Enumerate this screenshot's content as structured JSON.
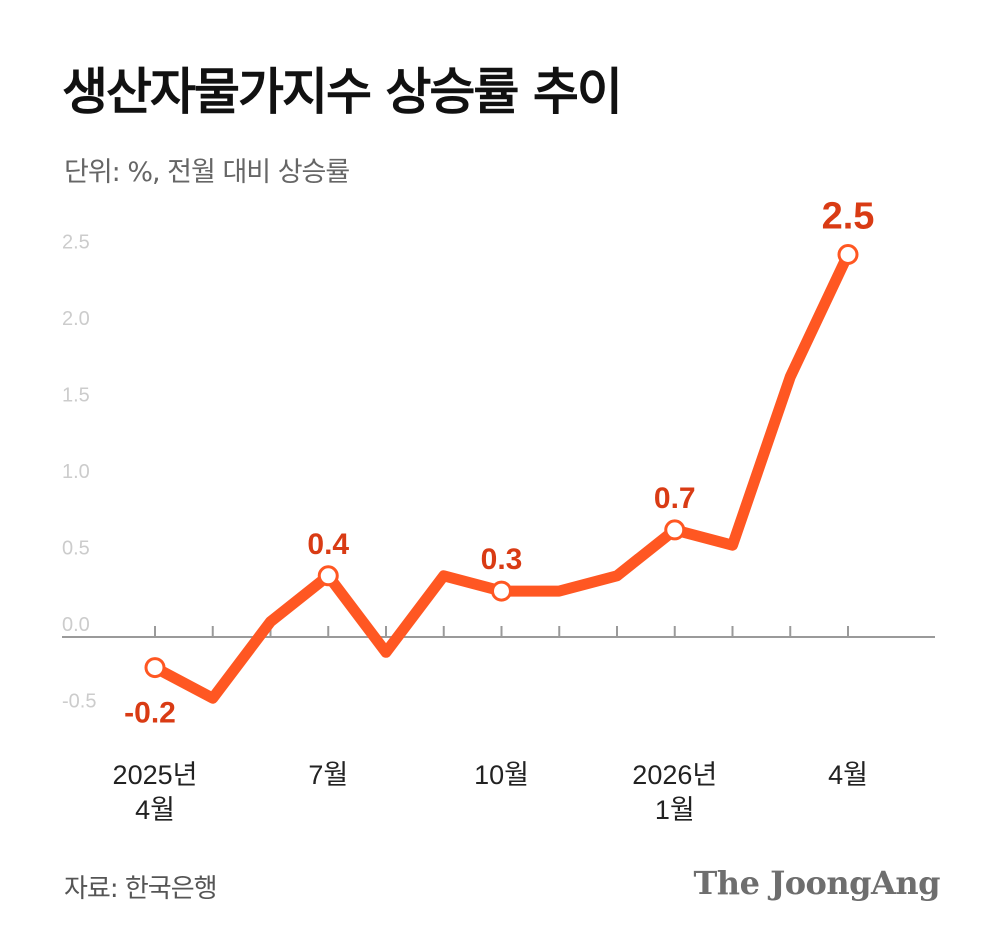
{
  "header": {
    "title": "생산자물가지수 상승률 추이",
    "subtitle": "단위: %, 전월 대비 상승률"
  },
  "footer": {
    "source": "자료: 한국은행",
    "brand": "The JoongAng"
  },
  "colors": {
    "line": "#ff5722",
    "label": "#d93b14",
    "axis": "#9a9a9a",
    "tick_label": "#cccccc",
    "x_label": "#222222"
  },
  "chart_data": {
    "type": "line",
    "title": "생산자물가지수 상승률 추이",
    "subtitle": "단위: %, 전월 대비 상승률",
    "ylim": [
      -0.7,
      2.6
    ],
    "yticks": [
      2.5,
      2.0,
      1.5,
      1.0,
      0.5,
      0.0,
      -0.5
    ],
    "ytick_labels": [
      "2.5",
      "2.0",
      "1.5",
      "1.0",
      "0.5",
      "0.0",
      "-0.5"
    ],
    "grid": false,
    "x": [
      "2025-04",
      "2025-05",
      "2025-06",
      "2025-07",
      "2025-08",
      "2025-09",
      "2025-10",
      "2025-11",
      "2025-12",
      "2026-01",
      "2026-02",
      "2026-03",
      "2026-04"
    ],
    "x_tick_labels": [
      {
        "index": 0,
        "lines": [
          "2025년",
          "4월"
        ]
      },
      {
        "index": 3,
        "lines": [
          "7월"
        ]
      },
      {
        "index": 6,
        "lines": [
          "10월"
        ]
      },
      {
        "index": 9,
        "lines": [
          "2026년",
          "1월"
        ]
      },
      {
        "index": 12,
        "lines": [
          "4월"
        ]
      }
    ],
    "values": [
      -0.2,
      -0.4,
      0.1,
      0.4,
      -0.1,
      0.4,
      0.3,
      0.3,
      0.4,
      0.7,
      0.6,
      1.7,
      2.5
    ],
    "data_labels": [
      {
        "index": 0,
        "text": "-0.2"
      },
      {
        "index": 3,
        "text": "0.4"
      },
      {
        "index": 6,
        "text": "0.3"
      },
      {
        "index": 9,
        "text": "0.7"
      },
      {
        "index": 12,
        "text": "2.5"
      }
    ]
  }
}
